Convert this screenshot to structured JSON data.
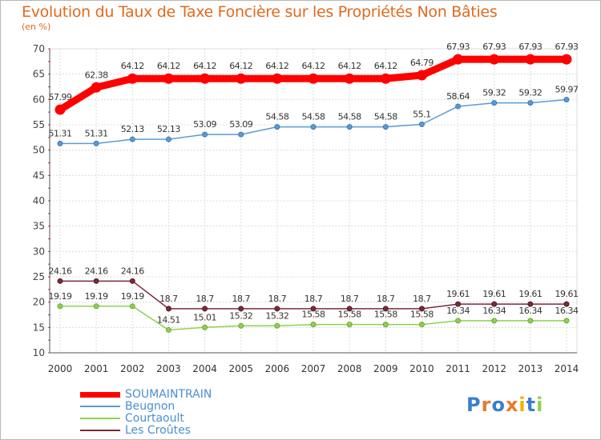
{
  "title": "Evolution du Taux de Taxe Foncière sur les Propriétés Non Bâties",
  "unit_label": "(en %)",
  "logo": "Proxiti",
  "chart_data": {
    "type": "line",
    "title": "Evolution du Taux de Taxe Foncière sur les Propriétés Non Bâties",
    "ylabel": "(en %)",
    "xlabel": "",
    "x": [
      "2000",
      "2001",
      "2002",
      "2003",
      "2004",
      "2005",
      "2006",
      "2007",
      "2008",
      "2009",
      "2010",
      "2011",
      "2012",
      "2013",
      "2014"
    ],
    "ylim": [
      10,
      70
    ],
    "yticks": [
      10,
      15,
      20,
      25,
      30,
      35,
      40,
      45,
      50,
      55,
      60,
      65,
      70
    ],
    "grid": true,
    "legend_position": "bottom-left",
    "series": [
      {
        "name": "SOUMAINTRAIN",
        "color": "#ff0000",
        "values": [
          57.99,
          62.38,
          64.12,
          64.12,
          64.12,
          64.12,
          64.12,
          64.12,
          64.12,
          64.12,
          64.79,
          67.93,
          67.93,
          67.93,
          67.93
        ],
        "labels": [
          "57.99",
          "62.38",
          "64.12",
          "64.12",
          "64.12",
          "64.12",
          "64.12",
          "64.12",
          "64.12",
          "64.12",
          "64.79",
          "67.93",
          "67.93",
          "67.93",
          "67.93"
        ]
      },
      {
        "name": "Beugnon",
        "color": "#5b9bd5",
        "values": [
          51.31,
          51.31,
          52.13,
          52.13,
          53.09,
          53.09,
          54.58,
          54.58,
          54.58,
          54.58,
          55.1,
          58.64,
          59.32,
          59.32,
          59.97
        ],
        "labels": [
          "51.31",
          "51.31",
          "52.13",
          "52.13",
          "53.09",
          "53.09",
          "54.58",
          "54.58",
          "54.58",
          "54.58",
          "55.1",
          "58.64",
          "59.32",
          "59.32",
          "59.97"
        ]
      },
      {
        "name": "Courtaoult",
        "color": "#8fd14f",
        "values": [
          19.19,
          19.19,
          19.19,
          14.51,
          15.01,
          15.32,
          15.32,
          15.58,
          15.58,
          15.58,
          15.58,
          16.34,
          16.34,
          16.34,
          16.34
        ],
        "labels": [
          "19.19",
          "19.19",
          "19.19",
          "14.51",
          "15.01",
          "15.32",
          "15.32",
          "15.58",
          "15.58",
          "15.58",
          "15.58",
          "16.34",
          "16.34",
          "16.34",
          "16.34"
        ]
      },
      {
        "name": "Les Croûtes",
        "color": "#7a2a3a",
        "values": [
          24.16,
          24.16,
          24.16,
          18.7,
          18.7,
          18.7,
          18.7,
          18.7,
          18.7,
          18.7,
          18.7,
          19.61,
          19.61,
          19.61,
          19.61
        ],
        "labels": [
          "24.16",
          "24.16",
          "24.16",
          "18.7",
          "18.7",
          "18.7",
          "18.7",
          "18.7",
          "18.7",
          "18.7",
          "18.7",
          "19.61",
          "19.61",
          "19.61",
          "19.61"
        ]
      }
    ]
  }
}
